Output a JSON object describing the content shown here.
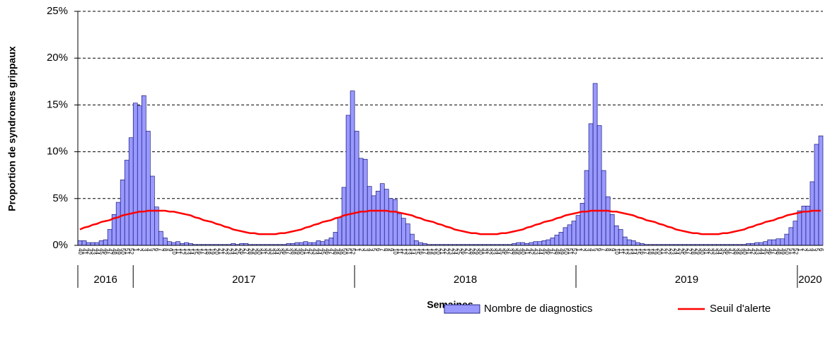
{
  "chart_data": {
    "type": "bar",
    "ylabel": "Proportion de syndromes grippaux",
    "xlabel": "Semaines",
    "ylim": [
      0,
      25
    ],
    "yticks": [
      {
        "value": 0,
        "label": "0%"
      },
      {
        "value": 5,
        "label": "5%"
      },
      {
        "value": 10,
        "label": "10%"
      },
      {
        "value": 15,
        "label": "15%"
      },
      {
        "value": 20,
        "label": "20%"
      },
      {
        "value": 25,
        "label": "25%"
      }
    ],
    "grid": true,
    "years": [
      "2016",
      "2017",
      "2018",
      "2019",
      "2020"
    ],
    "categories": [
      "40",
      "41",
      "42",
      "43",
      "44",
      "45",
      "46",
      "47",
      "48",
      "49",
      "50",
      "51",
      "52",
      "1",
      "2",
      "3",
      "4",
      "5",
      "6",
      "7",
      "8",
      "9",
      "10",
      "11",
      "12",
      "13",
      "14",
      "15",
      "16",
      "17",
      "18",
      "19",
      "20",
      "21",
      "22",
      "23",
      "24",
      "25",
      "26",
      "27",
      "28",
      "29",
      "30",
      "31",
      "32",
      "33",
      "34",
      "35",
      "36",
      "37",
      "38",
      "39",
      "40",
      "41",
      "42",
      "43",
      "44",
      "45",
      "46",
      "47",
      "48",
      "49",
      "50",
      "51",
      "52",
      "1",
      "2",
      "3",
      "4",
      "5",
      "6",
      "7",
      "8",
      "9",
      "10",
      "11",
      "12",
      "13",
      "14",
      "15",
      "16",
      "17",
      "18",
      "19",
      "20",
      "21",
      "22",
      "23",
      "24",
      "25",
      "26",
      "27",
      "28",
      "29",
      "30",
      "31",
      "32",
      "33",
      "34",
      "35",
      "36",
      "37",
      "38",
      "39",
      "40",
      "41",
      "42",
      "43",
      "44",
      "45",
      "46",
      "47",
      "48",
      "49",
      "50",
      "51",
      "52",
      "1",
      "2",
      "3",
      "4",
      "5",
      "6",
      "7",
      "8",
      "9",
      "10",
      "11",
      "12",
      "13",
      "14",
      "15",
      "16",
      "17",
      "18",
      "19",
      "20",
      "21",
      "22",
      "23",
      "24",
      "25",
      "26",
      "27",
      "28",
      "29",
      "30",
      "31",
      "32",
      "33",
      "34",
      "35",
      "36",
      "37",
      "38",
      "39",
      "40",
      "41",
      "42",
      "43",
      "44",
      "45",
      "46",
      "47",
      "48",
      "49",
      "50",
      "51",
      "52",
      "1",
      "2",
      "3",
      "4",
      "5",
      "6"
    ],
    "series": [
      {
        "name": "Nombre de diagnostics",
        "type": "bar",
        "color": "#9999ff",
        "values": [
          0.5,
          0.5,
          0.3,
          0.3,
          0.3,
          0.5,
          0.6,
          1.7,
          3.3,
          4.6,
          7.0,
          9.1,
          11.5,
          15.2,
          14.9,
          16.0,
          12.2,
          7.4,
          4.1,
          1.5,
          0.8,
          0.4,
          0.3,
          0.4,
          0.2,
          0.3,
          0.2,
          0.1,
          0.1,
          0.1,
          0.1,
          0.1,
          0.1,
          0.1,
          0.1,
          0.1,
          0.2,
          0.1,
          0.2,
          0.2,
          0.1,
          0.1,
          0.1,
          0.1,
          0.1,
          0.1,
          0.1,
          0.1,
          0.1,
          0.2,
          0.2,
          0.3,
          0.3,
          0.4,
          0.3,
          0.3,
          0.5,
          0.4,
          0.6,
          0.8,
          1.4,
          3.0,
          6.2,
          13.9,
          16.5,
          12.2,
          9.3,
          9.2,
          6.3,
          5.3,
          5.8,
          6.6,
          6.0,
          5.0,
          4.9,
          3.4,
          2.9,
          2.3,
          1.2,
          0.5,
          0.3,
          0.2,
          0.1,
          0.1,
          0.1,
          0.1,
          0.1,
          0.1,
          0.1,
          0.1,
          0.1,
          0.1,
          0.1,
          0.1,
          0.1,
          0.1,
          0.1,
          0.1,
          0.1,
          0.1,
          0.1,
          0.1,
          0.2,
          0.3,
          0.3,
          0.2,
          0.3,
          0.4,
          0.4,
          0.5,
          0.6,
          0.8,
          1.1,
          1.4,
          1.9,
          2.2,
          2.6,
          3.2,
          4.5,
          8.0,
          13.0,
          17.3,
          12.8,
          8.0,
          5.2,
          3.3,
          2.1,
          1.7,
          0.9,
          0.6,
          0.5,
          0.3,
          0.2,
          0.1,
          0.1,
          0.1,
          0.1,
          0.1,
          0.1,
          0.1,
          0.1,
          0.1,
          0.1,
          0.1,
          0.1,
          0.1,
          0.1,
          0.1,
          0.1,
          0.1,
          0.1,
          0.1,
          0.1,
          0.1,
          0.1,
          0.1,
          0.1,
          0.2,
          0.2,
          0.3,
          0.3,
          0.4,
          0.6,
          0.6,
          0.7,
          0.7,
          1.2,
          1.9,
          2.6,
          3.7,
          4.2,
          4.2,
          6.8,
          10.8,
          11.7
        ]
      },
      {
        "name": "Seuil d'alerte",
        "type": "line",
        "color": "#ff0000",
        "values": [
          1.7,
          1.9,
          2.0,
          2.2,
          2.3,
          2.5,
          2.6,
          2.7,
          2.9,
          3.0,
          3.2,
          3.3,
          3.4,
          3.5,
          3.6,
          3.6,
          3.7,
          3.7,
          3.7,
          3.7,
          3.7,
          3.6,
          3.6,
          3.5,
          3.4,
          3.3,
          3.2,
          3.0,
          2.9,
          2.7,
          2.6,
          2.5,
          2.3,
          2.2,
          2.0,
          1.9,
          1.7,
          1.6,
          1.5,
          1.4,
          1.3,
          1.3,
          1.2,
          1.2,
          1.2,
          1.2,
          1.2,
          1.3,
          1.3,
          1.4,
          1.5,
          1.6,
          1.7,
          1.9,
          2.0,
          2.2,
          2.3,
          2.5,
          2.6,
          2.7,
          2.9,
          3.0,
          3.2,
          3.3,
          3.4,
          3.5,
          3.6,
          3.6,
          3.7,
          3.7,
          3.7,
          3.7,
          3.7,
          3.6,
          3.6,
          3.5,
          3.4,
          3.3,
          3.2,
          3.0,
          2.9,
          2.7,
          2.6,
          2.5,
          2.3,
          2.2,
          2.0,
          1.9,
          1.7,
          1.6,
          1.5,
          1.4,
          1.3,
          1.3,
          1.2,
          1.2,
          1.2,
          1.2,
          1.2,
          1.3,
          1.3,
          1.4,
          1.5,
          1.6,
          1.7,
          1.9,
          2.0,
          2.2,
          2.3,
          2.5,
          2.6,
          2.7,
          2.9,
          3.0,
          3.2,
          3.3,
          3.4,
          3.5,
          3.6,
          3.6,
          3.7,
          3.7,
          3.7,
          3.7,
          3.7,
          3.6,
          3.6,
          3.5,
          3.4,
          3.3,
          3.2,
          3.0,
          2.9,
          2.7,
          2.6,
          2.5,
          2.3,
          2.2,
          2.0,
          1.9,
          1.7,
          1.6,
          1.5,
          1.4,
          1.3,
          1.3,
          1.2,
          1.2,
          1.2,
          1.2,
          1.2,
          1.3,
          1.3,
          1.4,
          1.5,
          1.6,
          1.7,
          1.9,
          2.0,
          2.2,
          2.3,
          2.5,
          2.6,
          2.7,
          2.9,
          3.0,
          3.2,
          3.3,
          3.4,
          3.5,
          3.6,
          3.6,
          3.7,
          3.7,
          3.7
        ]
      }
    ]
  }
}
